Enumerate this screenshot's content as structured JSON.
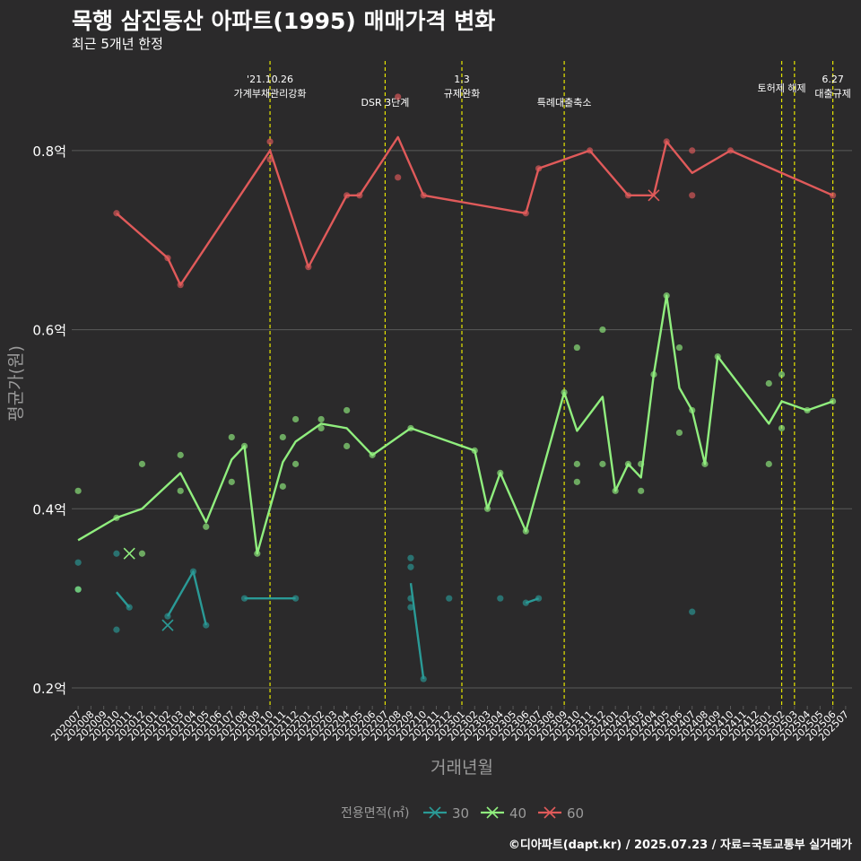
{
  "header": {
    "title": "목행 삼진동산 아파트(1995) 매매가격 변화",
    "subtitle": "최근 5개년 한정"
  },
  "caption": "©디아파트(dapt.kr) / 2025.07.23 / 자료=국토교통부 실거래가",
  "colors": {
    "background": "#2b2a2b",
    "grid": "#5a5a5a",
    "event_line": "#e6e600",
    "axis_text": "#ffffff",
    "muted_text": "#9a9a9a"
  },
  "chart_data": {
    "type": "line",
    "xlabel": "거래년월",
    "ylabel": "평균가(원)",
    "ylim": [
      0.18,
      0.9
    ],
    "y_ticks": [
      0.2,
      0.4,
      0.6,
      0.8
    ],
    "y_tick_labels": [
      "0.2억",
      "0.4억",
      "0.6억",
      "0.8억"
    ],
    "x_categories": [
      "202007",
      "202008",
      "202009",
      "202010",
      "202011",
      "202012",
      "202101",
      "202102",
      "202103",
      "202104",
      "202105",
      "202106",
      "202107",
      "202108",
      "202109",
      "202110",
      "202111",
      "202112",
      "202201",
      "202202",
      "202203",
      "202204",
      "202205",
      "202206",
      "202207",
      "202208",
      "202209",
      "202210",
      "202211",
      "202212",
      "202301",
      "202302",
      "202303",
      "202304",
      "202305",
      "202306",
      "202307",
      "202308",
      "202309",
      "202310",
      "202311",
      "202312",
      "202401",
      "202402",
      "202403",
      "202404",
      "202405",
      "202406",
      "202407",
      "202408",
      "202409",
      "202410",
      "202411",
      "202412",
      "202501",
      "202502",
      "202503",
      "202504",
      "202505",
      "202506",
      "202507"
    ],
    "legend": {
      "title": "전용면적(㎡)",
      "position": "bottom",
      "entries": [
        "30",
        "40",
        "60"
      ]
    },
    "events": [
      {
        "x": "202110",
        "label": "'21.10.26\n가계부채관리강화"
      },
      {
        "x": "202207",
        "label": "DSR 3단계"
      },
      {
        "x": "202301",
        "label": "1.3\n규제완화"
      },
      {
        "x": "202309",
        "label": "특례대출축소"
      },
      {
        "x": "202502",
        "label": "토허제 해제"
      },
      {
        "x": "202503",
        "label": ""
      },
      {
        "x": "202506",
        "label": "6.27\n대출규제"
      }
    ],
    "series": [
      {
        "name": "30",
        "color": "#2a9a96",
        "segments": [
          [
            [
              "202010",
              0.307
            ],
            [
              "202011",
              0.29
            ]
          ],
          [
            [
              "202102",
              0.28
            ],
            [
              "202104",
              0.33
            ],
            [
              "202105",
              0.27
            ]
          ],
          [
            [
              "202108",
              0.3
            ],
            [
              "202112",
              0.3
            ]
          ],
          [
            [
              "202209",
              0.317
            ],
            [
              "202210",
              0.21
            ]
          ],
          [
            [
              "202306",
              0.295
            ],
            [
              "202307",
              0.3
            ]
          ]
        ],
        "points": [
          [
            "202007",
            0.34
          ],
          [
            "202007",
            0.31
          ],
          [
            "202010",
            0.35
          ],
          [
            "202010",
            0.265
          ],
          [
            "202011",
            0.29
          ],
          [
            "202102",
            0.28
          ],
          [
            "202104",
            0.33
          ],
          [
            "202105",
            0.27
          ],
          [
            "202108",
            0.3
          ],
          [
            "202112",
            0.3
          ],
          [
            "202209",
            0.345
          ],
          [
            "202209",
            0.335
          ],
          [
            "202209",
            0.3
          ],
          [
            "202209",
            0.29
          ],
          [
            "202210",
            0.21
          ],
          [
            "202212",
            0.3
          ],
          [
            "202304",
            0.3
          ],
          [
            "202306",
            0.295
          ],
          [
            "202307",
            0.3
          ],
          [
            "202407",
            0.285
          ]
        ],
        "cross_points": [
          [
            "202102",
            0.27
          ]
        ]
      },
      {
        "name": "40",
        "color": "#90ee7e",
        "segments": [
          [
            [
              "202007",
              0.365
            ],
            [
              "202010",
              0.39
            ],
            [
              "202012",
              0.4
            ],
            [
              "202103",
              0.44
            ],
            [
              "202105",
              0.385
            ],
            [
              "202107",
              0.455
            ],
            [
              "202108",
              0.47
            ],
            [
              "202109",
              0.35
            ],
            [
              "202111",
              0.452
            ],
            [
              "202112",
              0.475
            ],
            [
              "202202",
              0.495
            ],
            [
              "202204",
              0.49
            ],
            [
              "202206",
              0.46
            ],
            [
              "202209",
              0.49
            ],
            [
              "202302",
              0.465
            ],
            [
              "202303",
              0.4
            ],
            [
              "202304",
              0.44
            ],
            [
              "202306",
              0.375
            ],
            [
              "202309",
              0.53
            ],
            [
              "202310",
              0.487
            ],
            [
              "202312",
              0.525
            ],
            [
              "202401",
              0.42
            ],
            [
              "202402",
              0.45
            ],
            [
              "202403",
              0.435
            ],
            [
              "202404",
              0.55
            ],
            [
              "202405",
              0.638
            ],
            [
              "202406",
              0.535
            ],
            [
              "202407",
              0.51
            ],
            [
              "202408",
              0.45
            ],
            [
              "202409",
              0.57
            ],
            [
              "202501",
              0.495
            ],
            [
              "202502",
              0.52
            ],
            [
              "202504",
              0.51
            ],
            [
              "202506",
              0.52
            ]
          ]
        ],
        "points": [
          [
            "202007",
            0.42
          ],
          [
            "202007",
            0.31
          ],
          [
            "202010",
            0.39
          ],
          [
            "202012",
            0.45
          ],
          [
            "202012",
            0.35
          ],
          [
            "202103",
            0.46
          ],
          [
            "202103",
            0.42
          ],
          [
            "202105",
            0.38
          ],
          [
            "202107",
            0.48
          ],
          [
            "202107",
            0.43
          ],
          [
            "202108",
            0.47
          ],
          [
            "202109",
            0.35
          ],
          [
            "202111",
            0.48
          ],
          [
            "202111",
            0.425
          ],
          [
            "202112",
            0.5
          ],
          [
            "202112",
            0.45
          ],
          [
            "202202",
            0.5
          ],
          [
            "202202",
            0.49
          ],
          [
            "202204",
            0.51
          ],
          [
            "202204",
            0.47
          ],
          [
            "202206",
            0.46
          ],
          [
            "202209",
            0.49
          ],
          [
            "202302",
            0.465
          ],
          [
            "202303",
            0.4
          ],
          [
            "202304",
            0.44
          ],
          [
            "202306",
            0.375
          ],
          [
            "202309",
            0.53
          ],
          [
            "202310",
            0.58
          ],
          [
            "202310",
            0.45
          ],
          [
            "202310",
            0.43
          ],
          [
            "202312",
            0.6
          ],
          [
            "202312",
            0.45
          ],
          [
            "202401",
            0.42
          ],
          [
            "202402",
            0.45
          ],
          [
            "202403",
            0.45
          ],
          [
            "202403",
            0.42
          ],
          [
            "202404",
            0.55
          ],
          [
            "202405",
            0.638
          ],
          [
            "202406",
            0.58
          ],
          [
            "202406",
            0.485
          ],
          [
            "202407",
            0.51
          ],
          [
            "202408",
            0.45
          ],
          [
            "202409",
            0.57
          ],
          [
            "202501",
            0.54
          ],
          [
            "202501",
            0.45
          ],
          [
            "202502",
            0.55
          ],
          [
            "202502",
            0.49
          ],
          [
            "202504",
            0.51
          ],
          [
            "202506",
            0.52
          ]
        ],
        "cross_points": [
          [
            "202011",
            0.35
          ]
        ]
      },
      {
        "name": "60",
        "color": "#e05a5a",
        "segments": [
          [
            [
              "202010",
              0.73
            ],
            [
              "202102",
              0.68
            ],
            [
              "202103",
              0.65
            ],
            [
              "202110",
              0.8
            ],
            [
              "202201",
              0.67
            ],
            [
              "202204",
              0.75
            ],
            [
              "202205",
              0.75
            ],
            [
              "202208",
              0.815
            ],
            [
              "202210",
              0.75
            ],
            [
              "202306",
              0.73
            ],
            [
              "202307",
              0.78
            ],
            [
              "202311",
              0.8
            ],
            [
              "202402",
              0.75
            ],
            [
              "202404",
              0.75
            ],
            [
              "202405",
              0.81
            ],
            [
              "202407",
              0.775
            ],
            [
              "202410",
              0.8
            ],
            [
              "202506",
              0.75
            ]
          ]
        ],
        "points": [
          [
            "202010",
            0.73
          ],
          [
            "202102",
            0.68
          ],
          [
            "202103",
            0.65
          ],
          [
            "202110",
            0.81
          ],
          [
            "202110",
            0.79
          ],
          [
            "202201",
            0.67
          ],
          [
            "202204",
            0.75
          ],
          [
            "202205",
            0.75
          ],
          [
            "202208",
            0.86
          ],
          [
            "202208",
            0.77
          ],
          [
            "202210",
            0.75
          ],
          [
            "202306",
            0.73
          ],
          [
            "202307",
            0.78
          ],
          [
            "202311",
            0.8
          ],
          [
            "202402",
            0.75
          ],
          [
            "202405",
            0.81
          ],
          [
            "202407",
            0.8
          ],
          [
            "202407",
            0.75
          ],
          [
            "202410",
            0.8
          ],
          [
            "202506",
            0.75
          ]
        ],
        "cross_points": [
          [
            "202404",
            0.75
          ]
        ]
      }
    ]
  }
}
